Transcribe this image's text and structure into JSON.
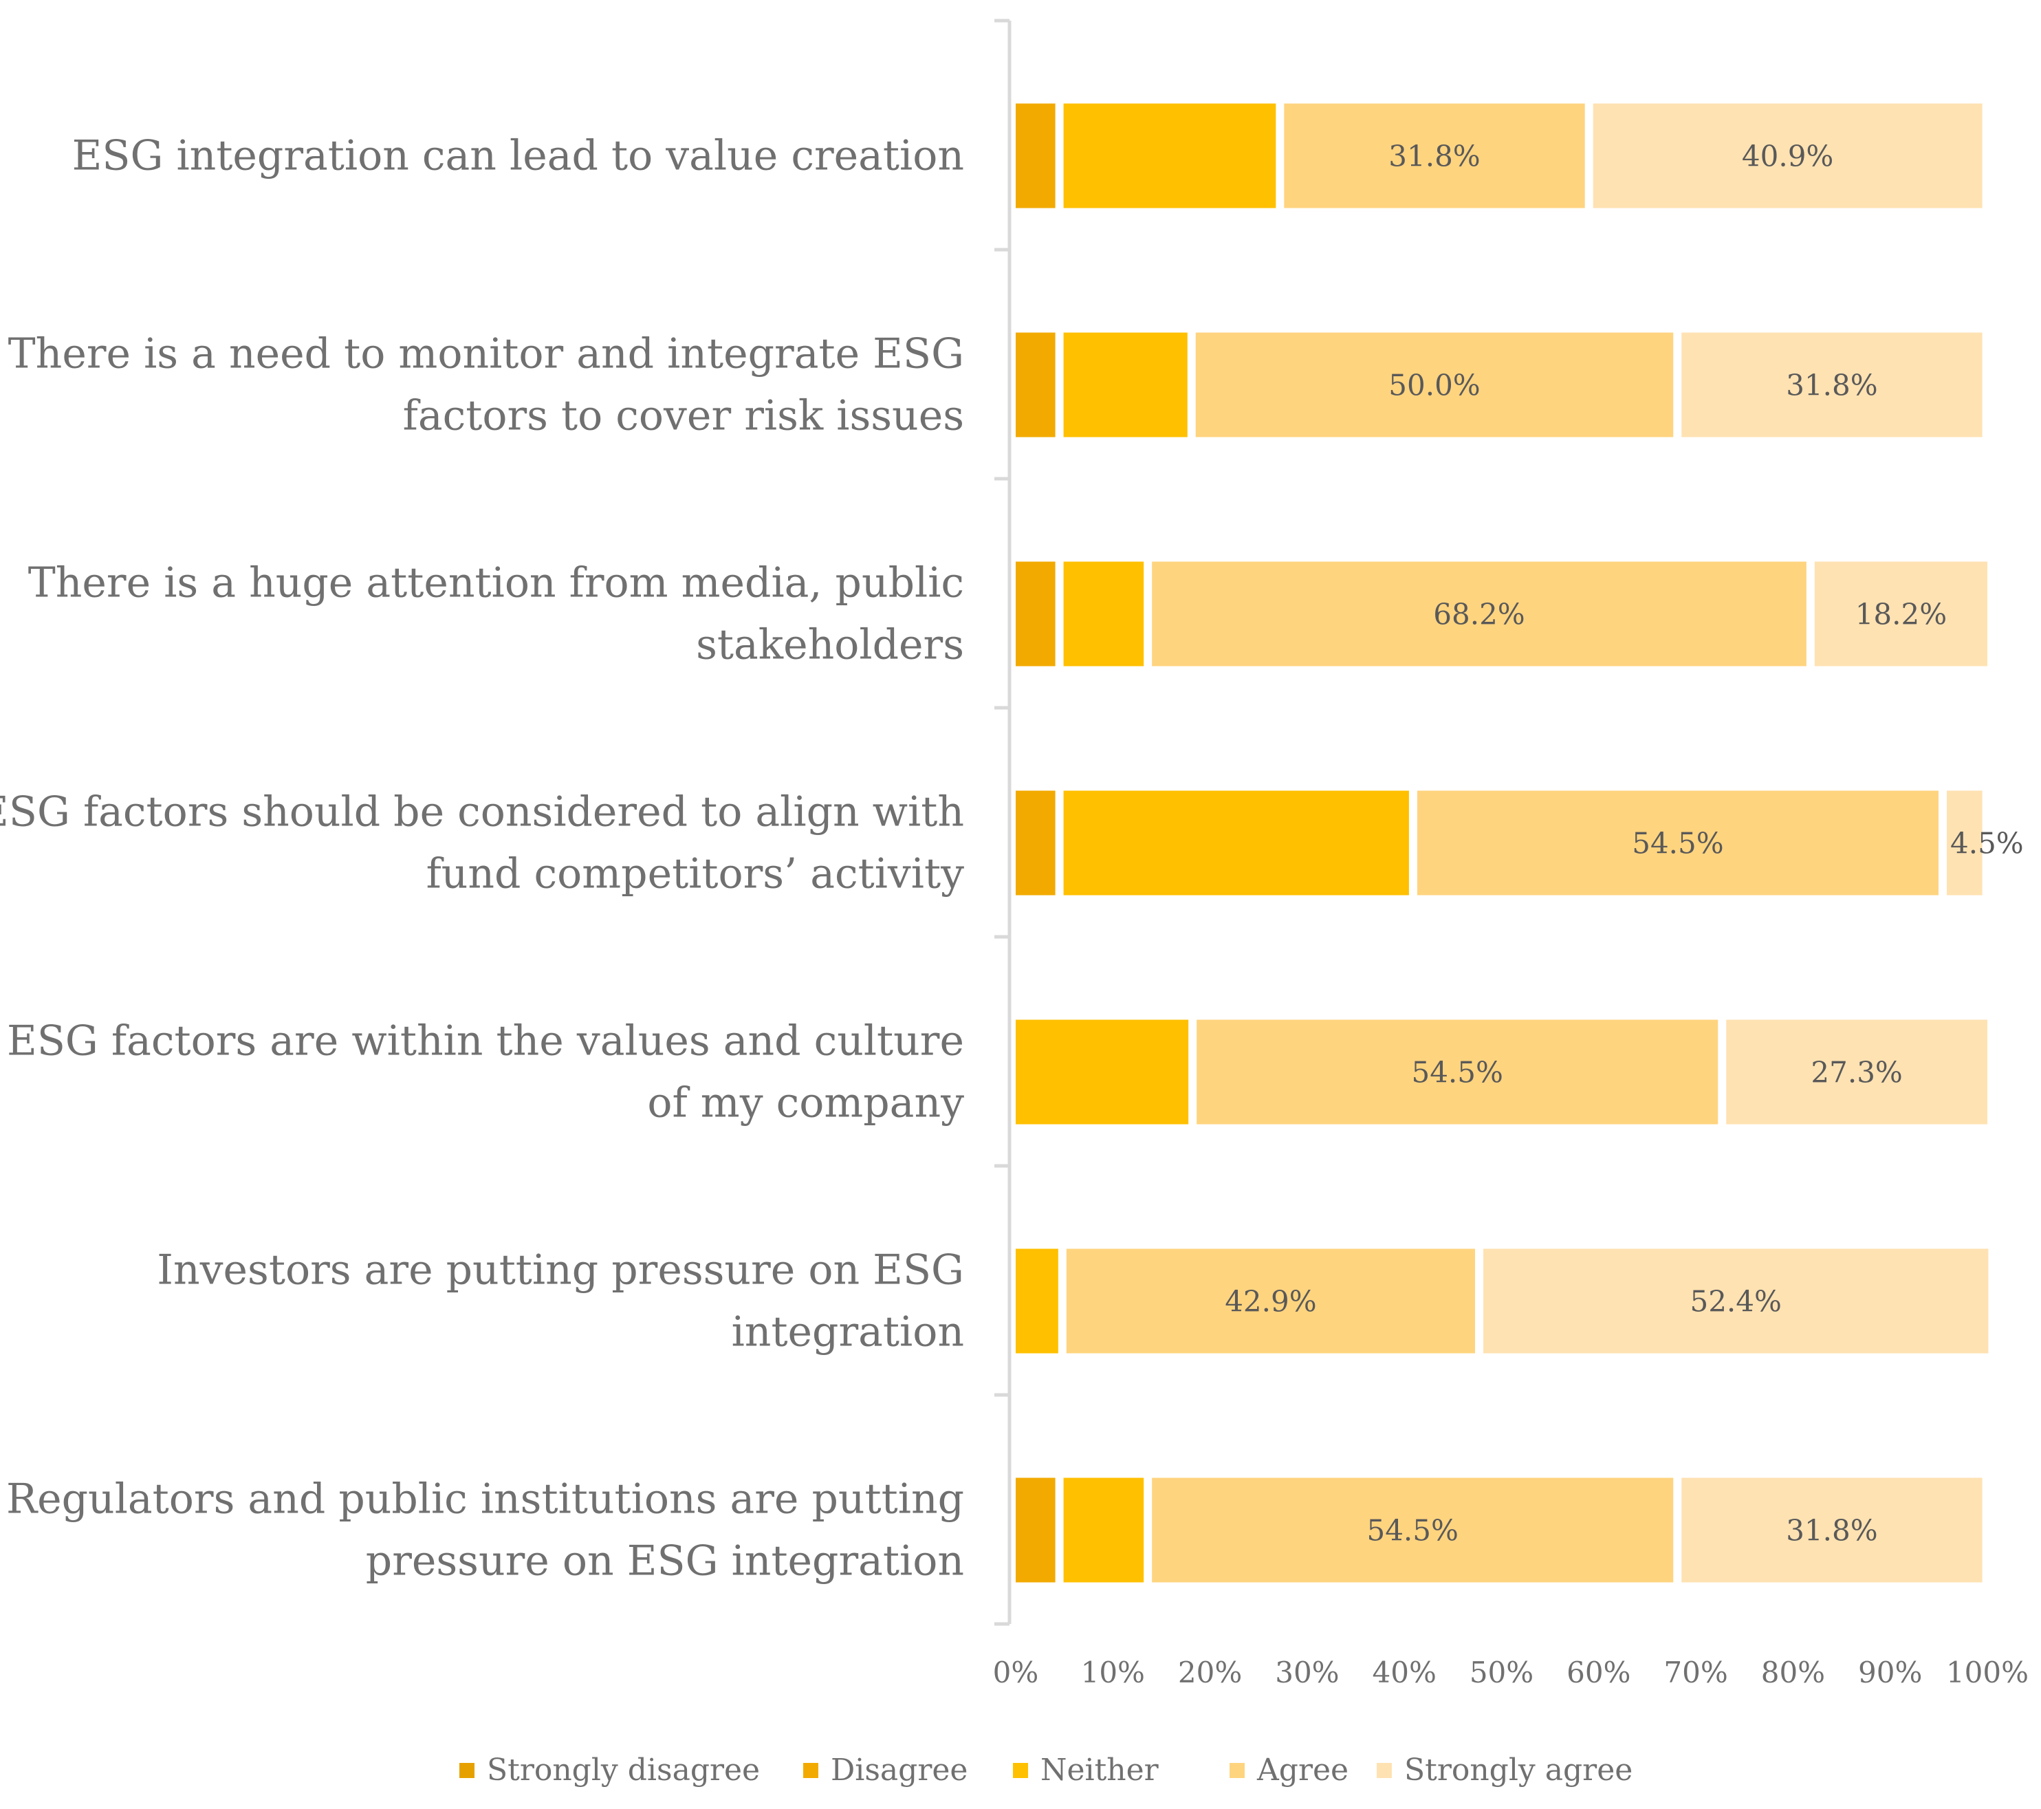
{
  "chart_data": {
    "type": "bar",
    "orientation": "horizontal",
    "stacked": true,
    "title": "",
    "xlabel": "",
    "ylabel": "",
    "xlim": [
      0,
      100
    ],
    "x_tick_labels": [
      "0%",
      "10%",
      "20%",
      "30%",
      "40%",
      "50%",
      "60%",
      "70%",
      "80%",
      "90%",
      "100%"
    ],
    "grid": false,
    "legend_position": "bottom",
    "categories": [
      [
        "ESG integration can lead to value creation"
      ],
      [
        "There is a need to monitor and integrate ESG",
        "factors to cover risk issues"
      ],
      [
        "There is a huge attention from media, public",
        "stakeholders"
      ],
      [
        "ESG factors should be considered to align with",
        "fund competitors’ activity"
      ],
      [
        "ESG factors are within the values and culture",
        "of my company"
      ],
      [
        "Investors are putting pressure on ESG",
        "integration"
      ],
      [
        "Regulators and public institutions are putting",
        "pressure on ESG integration"
      ]
    ],
    "series": [
      {
        "name": "Strongly disagree",
        "color": "#E6A100",
        "values": [
          0,
          0,
          0,
          0,
          0,
          0,
          0
        ],
        "labels": [
          "",
          "",
          "",
          "",
          "",
          "",
          ""
        ]
      },
      {
        "name": "Disagree",
        "color": "#F2AA00",
        "values": [
          4.5,
          4.5,
          4.5,
          4.5,
          0,
          0,
          4.5
        ],
        "labels": [
          "",
          "",
          "",
          "",
          "",
          "",
          ""
        ]
      },
      {
        "name": "Neither",
        "color": "#FFC000",
        "values": [
          22.7,
          13.6,
          9.1,
          36.4,
          18.2,
          4.8,
          9.1
        ],
        "labels": [
          "",
          "",
          "",
          "",
          "",
          "",
          ""
        ]
      },
      {
        "name": "Agree",
        "color": "#FFD47F",
        "values": [
          31.8,
          50.0,
          68.2,
          54.5,
          54.5,
          42.9,
          54.5
        ],
        "labels": [
          "31.8%",
          "50.0%",
          "68.2%",
          "54.5%",
          "54.5%",
          "42.9%",
          "54.5%"
        ]
      },
      {
        "name": "Strongly agree",
        "color": "#FFE2B2",
        "values": [
          40.9,
          31.8,
          18.2,
          4.5,
          27.3,
          52.4,
          31.8
        ],
        "labels": [
          "40.9%",
          "31.8%",
          "18.2%",
          "4.5%",
          "27.3%",
          "52.4%",
          "31.8%"
        ]
      }
    ]
  }
}
